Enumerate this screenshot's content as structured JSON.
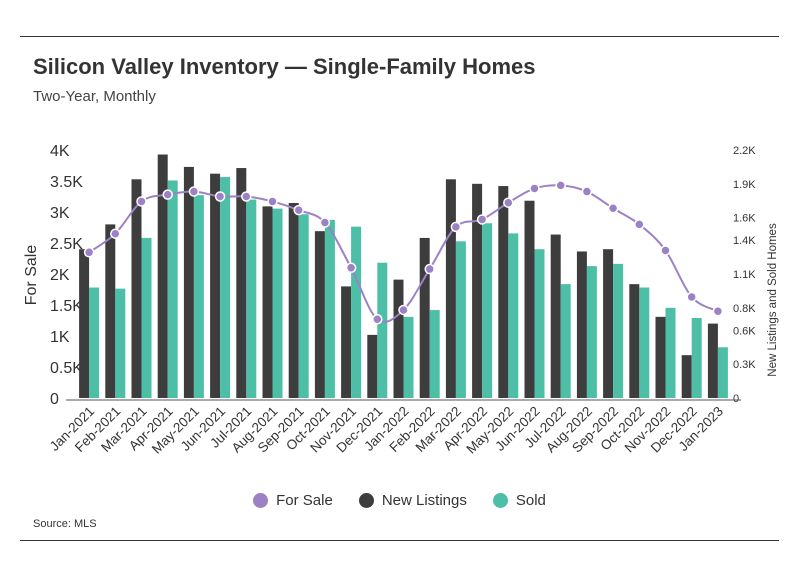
{
  "header": {
    "title": "Silicon Valley Inventory — Single-Family Homes",
    "subtitle": "Two-Year, Monthly"
  },
  "footer": {
    "source": "Source: MLS"
  },
  "colors": {
    "for_sale": "#9c82c4",
    "new_listings": "#3d3d3d",
    "sold": "#4dbfa6",
    "axis": "#333333"
  },
  "chart_data": {
    "type": "bar",
    "title": "Silicon Valley Inventory — Single-Family Homes",
    "subtitle": "Two-Year, Monthly",
    "categories": [
      "Jan-2021",
      "Feb-2021",
      "Mar-2021",
      "Apr-2021",
      "May-2021",
      "Jun-2021",
      "Jul-2021",
      "Aug-2021",
      "Sep-2021",
      "Oct-2021",
      "Nov-2021",
      "Dec-2021",
      "Jan-2022",
      "Feb-2022",
      "Mar-2022",
      "Apr-2022",
      "May-2022",
      "Jun-2022",
      "Jul-2022",
      "Aug-2022",
      "Sep-2022",
      "Oct-2022",
      "Nov-2022",
      "Dec-2022",
      "Jan-2023"
    ],
    "ylabel_left": "For Sale",
    "ylabel_right": "New Listings and Sold Homes",
    "ylim_left": [
      0,
      4000
    ],
    "ylim_right": [
      0,
      2200
    ],
    "yticks_left": [
      {
        "value": 0,
        "label": "0"
      },
      {
        "value": 500,
        "label": "0.5K"
      },
      {
        "value": 1000,
        "label": "1K"
      },
      {
        "value": 1500,
        "label": "1.5K"
      },
      {
        "value": 2000,
        "label": "2K"
      },
      {
        "value": 2500,
        "label": "2.5K"
      },
      {
        "value": 3000,
        "label": "3K"
      },
      {
        "value": 3500,
        "label": "3.5K"
      },
      {
        "value": 4000,
        "label": "4K"
      }
    ],
    "yticks_right": [
      {
        "value": 0,
        "label": "0"
      },
      {
        "value": 300,
        "label": "0.3K"
      },
      {
        "value": 600,
        "label": "0.6K"
      },
      {
        "value": 800,
        "label": "0.8K"
      },
      {
        "value": 1100,
        "label": "1.1K"
      },
      {
        "value": 1400,
        "label": "1.4K"
      },
      {
        "value": 1600,
        "label": "1.6K"
      },
      {
        "value": 1900,
        "label": "1.9K"
      },
      {
        "value": 2200,
        "label": "2.2K"
      }
    ],
    "legend_position": "bottom",
    "series": [
      {
        "name": "New Listings",
        "type": "bar",
        "axis": "right",
        "values": [
          1320,
          1540,
          1940,
          2160,
          2050,
          1990,
          2040,
          1700,
          1730,
          1480,
          990,
          560,
          1050,
          1420,
          1940,
          1900,
          1880,
          1750,
          1450,
          1300,
          1320,
          1010,
          720,
          380,
          660
        ]
      },
      {
        "name": "Sold",
        "type": "bar",
        "axis": "right",
        "values": [
          980,
          970,
          1420,
          1930,
          1800,
          1960,
          1760,
          1680,
          1630,
          1580,
          1520,
          1200,
          720,
          780,
          1390,
          1550,
          1460,
          1320,
          1010,
          1170,
          1190,
          980,
          800,
          710,
          450
        ]
      },
      {
        "name": "For Sale",
        "type": "line",
        "axis": "left",
        "values": [
          2350,
          2650,
          3170,
          3280,
          3330,
          3250,
          3250,
          3170,
          3030,
          2830,
          2100,
          1270,
          1420,
          2080,
          2760,
          2880,
          3150,
          3380,
          3430,
          3330,
          3060,
          2800,
          2380,
          1630,
          1400
        ]
      }
    ]
  }
}
